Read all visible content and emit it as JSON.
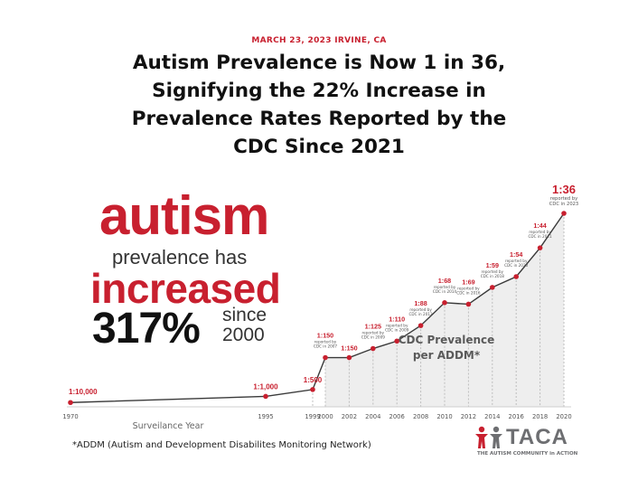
{
  "header": {
    "dateline": "MARCH 23, 2023  IRVINE, CA",
    "headline": "Autism Prevalence is Now 1 in 36, Signifying the 22% Increase in Prevalence Rates Reported by the CDC Since 2021"
  },
  "hero": {
    "line1": "autism",
    "line2": "prevalence has",
    "line3": "increased",
    "line4": "317%",
    "line5a": "since",
    "line5b": "2000"
  },
  "colors": {
    "accent": "#c8202f",
    "line": "#3a3a3a",
    "grid": "#bdbdbd",
    "fill": "#eeeeee"
  },
  "footnote": "*ADDM (Autism and Development Disabilites Monitoring Network)",
  "logo": {
    "word": "TACA",
    "tagline": "THE AUTISM COMMUNITY in ACTION",
    "icon": "people-figures-icon"
  },
  "chart_data": {
    "type": "line",
    "xlabel": "Surveilance Year",
    "panel_label": "CDC Prevalence per ADDM*",
    "x_ticks": [
      "1970",
      "1995",
      "1999",
      "2000",
      "2002",
      "2004",
      "2006",
      "2008",
      "2010",
      "2012",
      "2014",
      "2016",
      "2018",
      "2020"
    ],
    "x_ticks_numeric": [
      1970,
      1995,
      1999,
      2000,
      2002,
      2004,
      2006,
      2008,
      2010,
      2012,
      2014,
      2016,
      2018,
      2020
    ],
    "x_axis_breaks": "non-linear spacing: 1970 to 1995 and 1995 to 1999 compressed",
    "series": [
      {
        "values": [
          {
            "x": 1970,
            "label": "1:10,000",
            "rate": 0.0001,
            "note": ""
          },
          {
            "x": 1995,
            "label": "1:1,000",
            "rate": 0.001,
            "note": ""
          },
          {
            "x": 1999,
            "label": "1:500",
            "rate": 0.002,
            "note": ""
          },
          {
            "x": 2000,
            "label": "1:150",
            "rate": 0.00667,
            "note": "reported by CDC in 2007"
          },
          {
            "x": 2002,
            "label": "1:150",
            "rate": 0.00667,
            "note": ""
          },
          {
            "x": 2004,
            "label": "1:125",
            "rate": 0.008,
            "note": "reported by CDC in 2009"
          },
          {
            "x": 2006,
            "label": "1:110",
            "rate": 0.00909,
            "note": "reported by CDC in 2009"
          },
          {
            "x": 2008,
            "label": "1:88",
            "rate": 0.01136,
            "note": "reported by CDC in 2012"
          },
          {
            "x": 2010,
            "label": "1:68",
            "rate": 0.01471,
            "note": "reported by CDC in 2014"
          },
          {
            "x": 2012,
            "label": "1:69",
            "rate": 0.01449,
            "note": "reported by CDC in 2016"
          },
          {
            "x": 2014,
            "label": "1:59",
            "rate": 0.01695,
            "note": "reported by CDC in 2018"
          },
          {
            "x": 2016,
            "label": "1:54",
            "rate": 0.01852,
            "note": "reported by CDC in 2020"
          },
          {
            "x": 2018,
            "label": "1:44",
            "rate": 0.02273,
            "note": "reported by CDC in 2021"
          },
          {
            "x": 2020,
            "label": "1:36",
            "rate": 0.02778,
            "note": "reported by CDC in 2023"
          }
        ]
      }
    ],
    "grid": true,
    "grid_style": "dotted vertical lines from 1999 onward"
  }
}
